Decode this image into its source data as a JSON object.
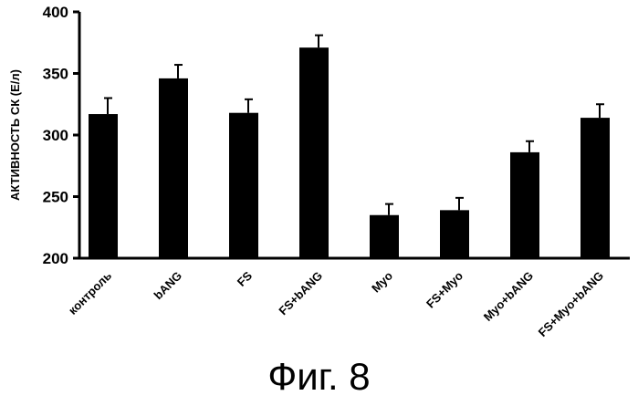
{
  "caption": "Фиг. 8",
  "chart_data": {
    "type": "bar",
    "title": "",
    "xlabel": "",
    "ylabel": "АКТИВНОСТЬ СК (Е/л)",
    "ylim": [
      200,
      400
    ],
    "yticks": [
      200,
      250,
      300,
      350,
      400
    ],
    "categories": [
      "контроль",
      "bANG",
      "FS",
      "FS+bANG",
      "Myo",
      "FS+Myo",
      "Myo+bANG",
      "FS+Myo+bANG"
    ],
    "values": [
      317,
      346,
      318,
      371,
      235,
      239,
      286,
      314
    ],
    "errors": [
      13,
      11,
      11,
      10,
      9,
      10,
      9,
      11
    ],
    "bar_color": "#000000",
    "grid": false,
    "legend": "none"
  }
}
